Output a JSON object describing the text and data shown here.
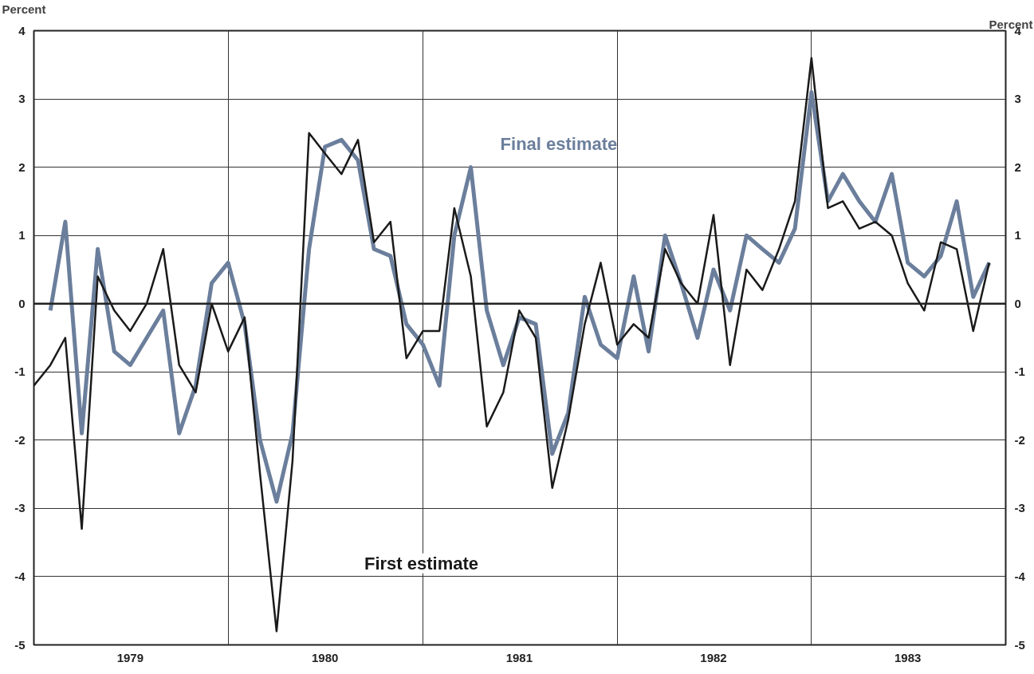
{
  "chart_data": {
    "type": "line",
    "ylabel": "Percent",
    "y2label": "Percent",
    "x": [
      "1979-01",
      "1979-02",
      "1979-03",
      "1979-04",
      "1979-05",
      "1979-06",
      "1979-07",
      "1979-08",
      "1979-09",
      "1979-10",
      "1979-11",
      "1979-12",
      "1980-01",
      "1980-02",
      "1980-03",
      "1980-04",
      "1980-05",
      "1980-06",
      "1980-07",
      "1980-08",
      "1980-09",
      "1980-10",
      "1980-11",
      "1980-12",
      "1981-01",
      "1981-02",
      "1981-03",
      "1981-04",
      "1981-05",
      "1981-06",
      "1981-07",
      "1981-08",
      "1981-09",
      "1981-10",
      "1981-11",
      "1981-12",
      "1982-01",
      "1982-02",
      "1982-03",
      "1982-04",
      "1982-05",
      "1982-06",
      "1982-07",
      "1982-08",
      "1982-09",
      "1982-10",
      "1982-11",
      "1982-12",
      "1983-01",
      "1983-02",
      "1983-03",
      "1983-04",
      "1983-05",
      "1983-06",
      "1983-07",
      "1983-08",
      "1983-09",
      "1983-10",
      "1983-11",
      "1983-12"
    ],
    "series": [
      {
        "name": "Final estimate",
        "color": "#6b7f9c",
        "values": [
          null,
          -0.1,
          1.2,
          -1.9,
          0.8,
          -0.7,
          -0.9,
          -0.5,
          -0.1,
          -1.9,
          -1.2,
          0.3,
          0.6,
          -0.3,
          -2.0,
          -2.9,
          -1.9,
          0.8,
          2.3,
          2.4,
          2.1,
          0.8,
          0.7,
          -0.3,
          -0.6,
          -1.2,
          1.0,
          2.0,
          -0.1,
          -0.9,
          -0.2,
          -0.3,
          -2.2,
          -1.6,
          0.1,
          -0.6,
          -0.8,
          0.4,
          -0.7,
          1.0,
          0.3,
          -0.5,
          0.5,
          -0.1,
          1.0,
          0.8,
          0.6,
          1.1,
          3.1,
          1.5,
          1.9,
          1.5,
          1.2,
          1.9,
          0.6,
          0.4,
          0.7,
          1.5,
          0.1,
          0.6
        ]
      },
      {
        "name": "First estimate",
        "color": "#1a1a1a",
        "values": [
          -1.2,
          -0.9,
          -0.5,
          -3.3,
          0.4,
          -0.1,
          -0.4,
          0.0,
          0.8,
          -0.9,
          -1.3,
          0.0,
          -0.7,
          -0.2,
          -2.5,
          -4.8,
          -2.3,
          2.5,
          2.2,
          1.9,
          2.4,
          0.9,
          1.2,
          -0.8,
          -0.4,
          -0.4,
          1.4,
          0.4,
          -1.8,
          -1.3,
          -0.1,
          -0.5,
          -2.7,
          -1.7,
          -0.3,
          0.6,
          -0.6,
          -0.3,
          -0.5,
          0.8,
          0.3,
          0.0,
          1.3,
          -0.9,
          0.5,
          0.2,
          0.8,
          1.5,
          3.6,
          1.4,
          1.5,
          1.1,
          1.2,
          1.0,
          0.3,
          -0.1,
          0.9,
          0.8,
          -0.4,
          0.6
        ]
      }
    ],
    "xlim": [
      "1979-01-01",
      "1984-01-01"
    ],
    "xticks": [
      {
        "value": "1979-07-01",
        "label": "1979"
      },
      {
        "value": "1980-07-01",
        "label": "1980"
      },
      {
        "value": "1981-07-01",
        "label": "1981"
      },
      {
        "value": "1982-07-01",
        "label": "1982"
      },
      {
        "value": "1983-07-01",
        "label": "1983"
      }
    ],
    "ylim": [
      -5,
      4
    ],
    "yticks": [
      -5,
      -4,
      -3,
      -2,
      -1,
      0,
      1,
      2,
      3,
      4
    ],
    "y2lim": [
      -5,
      4
    ],
    "y2ticks": [
      -5,
      -4,
      -3,
      -2,
      -1,
      0,
      1,
      2,
      3,
      4
    ],
    "ref_lines": [
      {
        "axis": "y",
        "value": 0,
        "color": "#222222"
      }
    ],
    "grid": true,
    "marker": "none",
    "line_style": "solid"
  }
}
